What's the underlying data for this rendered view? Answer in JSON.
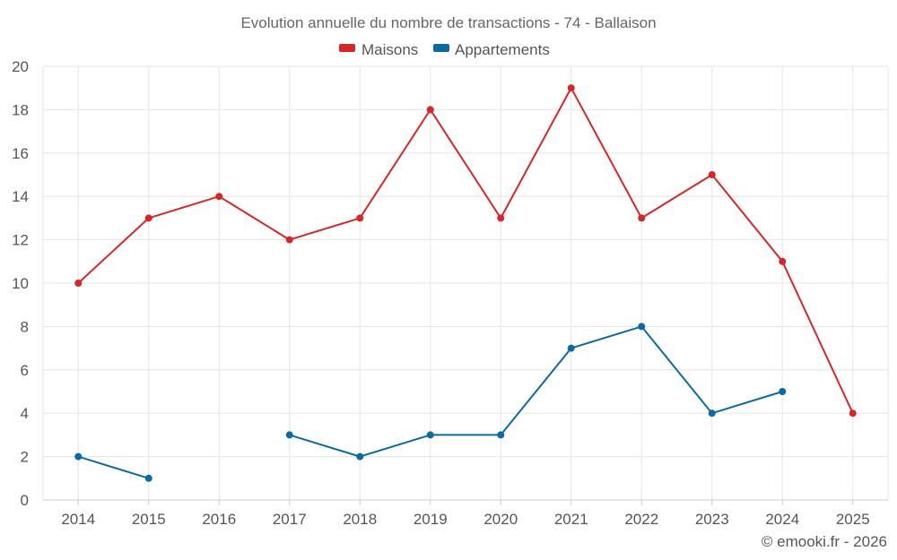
{
  "chart_data": {
    "type": "line",
    "title": "Evolution annuelle du nombre de transactions - 74 - Ballaison",
    "categories": [
      "2014",
      "2015",
      "2016",
      "2017",
      "2018",
      "2019",
      "2020",
      "2021",
      "2022",
      "2023",
      "2024",
      "2025"
    ],
    "ylim": [
      0,
      20
    ],
    "yticks": [
      0,
      2,
      4,
      6,
      8,
      10,
      12,
      14,
      16,
      18,
      20
    ],
    "grid": true,
    "legend_position": "top-center",
    "series": [
      {
        "name": "Maisons",
        "color": "#d62728",
        "values": [
          10,
          13,
          14,
          12,
          13,
          18,
          13,
          19,
          13,
          15,
          11,
          4
        ]
      },
      {
        "name": "Appartements",
        "color": "#0a6aa1",
        "values": [
          2,
          1,
          null,
          3,
          2,
          3,
          3,
          7,
          8,
          4,
          5,
          null
        ]
      }
    ]
  },
  "credit": "© emooki.fr - 2026"
}
